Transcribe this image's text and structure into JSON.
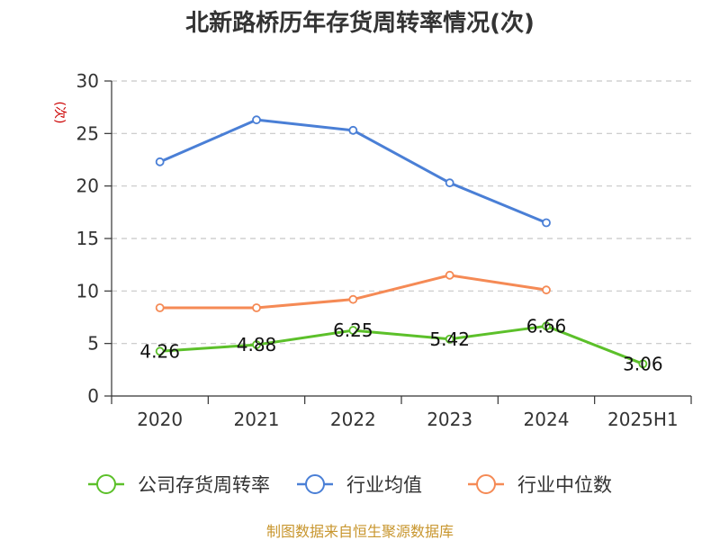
{
  "chart_data": {
    "type": "line",
    "title": "北新路桥历年存货周转率情况(次)",
    "unit_label": "(次)",
    "categories": [
      "2020",
      "2021",
      "2022",
      "2023",
      "2024",
      "2025H1"
    ],
    "ylim": [
      0,
      30
    ],
    "yticks": [
      0,
      5,
      10,
      15,
      20,
      25,
      30
    ],
    "grid": true,
    "legend_position": "bottom",
    "series": [
      {
        "name": "公司存货周转率",
        "color": "#5cc02a",
        "values": [
          4.26,
          4.88,
          6.25,
          5.42,
          6.66,
          3.06
        ],
        "labels": [
          "4.26",
          "4.88",
          "6.25",
          "5.42",
          "6.66",
          "3.06"
        ],
        "show_labels": true
      },
      {
        "name": "行业均值",
        "color": "#4a7fd6",
        "values": [
          22.3,
          26.3,
          25.3,
          20.3,
          16.5,
          null
        ],
        "show_labels": false
      },
      {
        "name": "行业中位数",
        "color": "#f58a55",
        "values": [
          8.4,
          8.4,
          9.2,
          11.5,
          10.1,
          null
        ],
        "show_labels": false
      }
    ],
    "source": "制图数据来自恒生聚源数据库"
  }
}
